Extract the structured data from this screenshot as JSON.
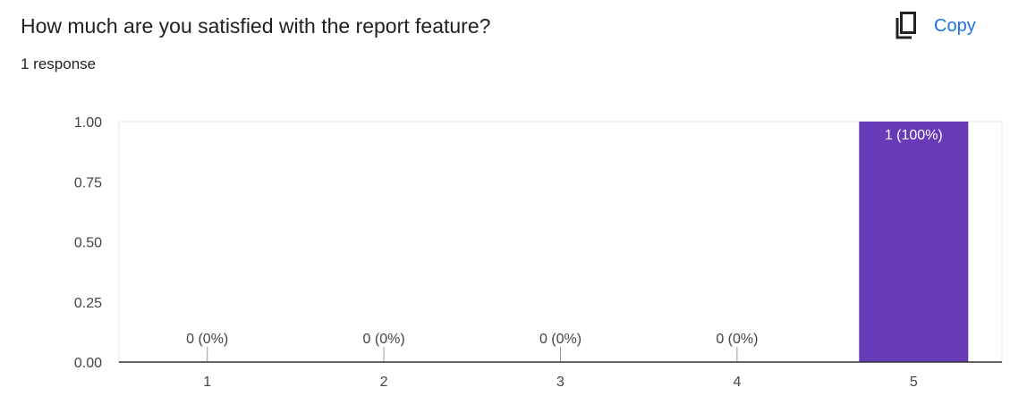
{
  "question": {
    "title": "How much are you satisfied with the report feature?",
    "response_count": "1 response"
  },
  "toolbar": {
    "copy_label": "Copy",
    "copy_icon": "copy-icon"
  },
  "colors": {
    "bar": "#673ab7",
    "accent": "#1a73e8"
  },
  "chart_data": {
    "type": "bar",
    "categories": [
      "1",
      "2",
      "3",
      "4",
      "5"
    ],
    "values": [
      0,
      0,
      0,
      0,
      1
    ],
    "data_labels": [
      "0 (0%)",
      "0 (0%)",
      "0 (0%)",
      "0 (0%)",
      "1 (100%)"
    ],
    "y_ticks": [
      "0.00",
      "0.25",
      "0.50",
      "0.75",
      "1.00"
    ],
    "ylim": [
      0,
      1
    ],
    "grid": false,
    "legend": "none"
  }
}
